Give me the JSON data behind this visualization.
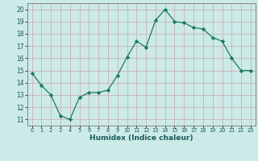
{
  "x": [
    0,
    1,
    2,
    3,
    4,
    5,
    6,
    7,
    8,
    9,
    10,
    11,
    12,
    13,
    14,
    15,
    16,
    17,
    18,
    19,
    20,
    21,
    22,
    23
  ],
  "y": [
    14.8,
    13.8,
    13.0,
    11.3,
    11.0,
    12.8,
    13.2,
    13.2,
    13.4,
    14.6,
    16.1,
    17.4,
    16.9,
    19.1,
    20.0,
    19.0,
    18.9,
    18.5,
    18.4,
    17.7,
    17.4,
    16.0,
    15.0,
    15.0
  ],
  "line_color": "#1a7a5e",
  "marker": "D",
  "marker_size": 2.2,
  "bg_color": "#cceae7",
  "grid_color": "#c8a8a8",
  "xlabel": "Humidex (Indice chaleur)",
  "xlim": [
    -0.5,
    23.5
  ],
  "ylim": [
    10.5,
    20.5
  ],
  "yticks": [
    11,
    12,
    13,
    14,
    15,
    16,
    17,
    18,
    19,
    20
  ],
  "xticks": [
    0,
    1,
    2,
    3,
    4,
    5,
    6,
    7,
    8,
    9,
    10,
    11,
    12,
    13,
    14,
    15,
    16,
    17,
    18,
    19,
    20,
    21,
    22,
    23
  ]
}
